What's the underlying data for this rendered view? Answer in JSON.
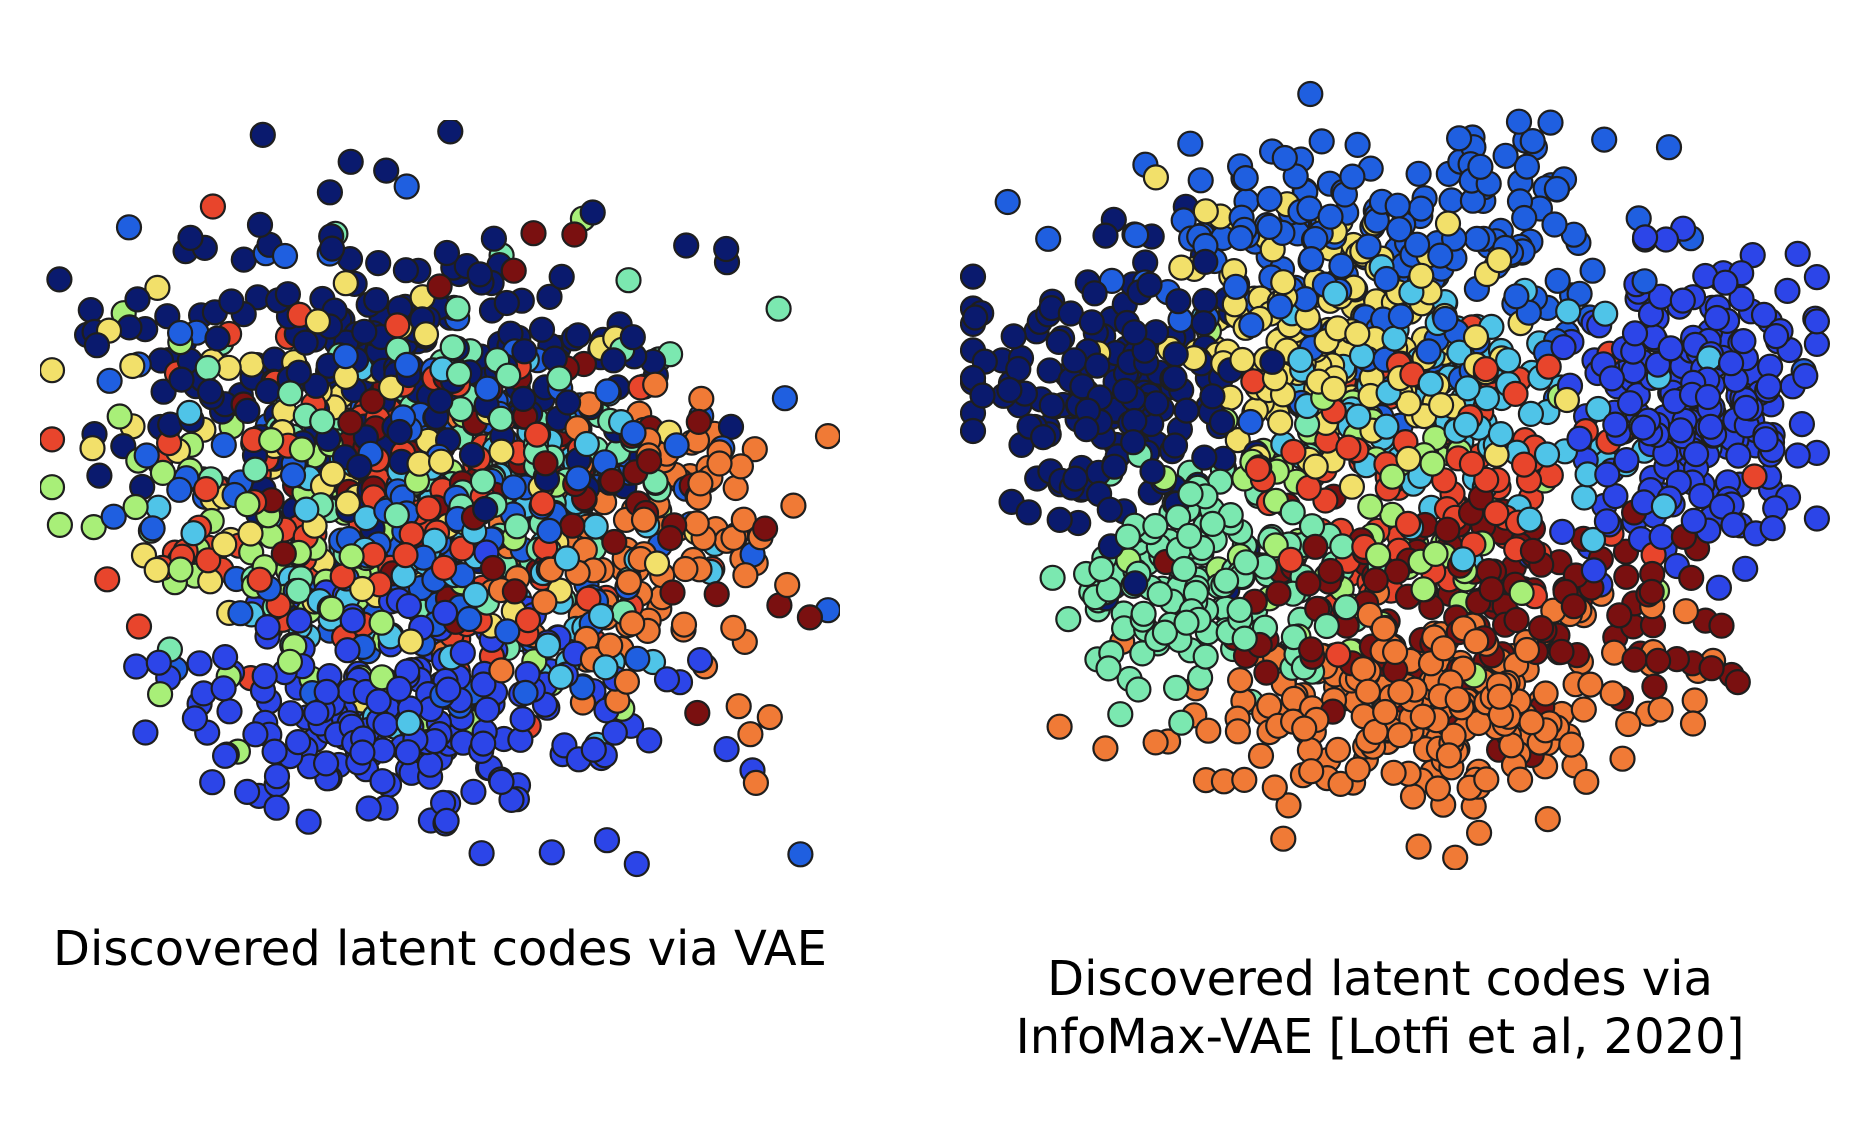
{
  "captions": {
    "vae": "Discovered latent codes via VAE",
    "infomax_line1": "Discovered latent codes via",
    "infomax_line2": "InfoMax-VAE [Lotfi et al, 2020]"
  },
  "chart_data": [
    {
      "type": "scatter",
      "title": "",
      "xlabel": "",
      "ylabel": "",
      "axes_visible": false,
      "grid": false,
      "colors": [
        "#0a1a6e",
        "#1f5fe0",
        "#2c45e8",
        "#4fc4e8",
        "#7be8b0",
        "#a8ef78",
        "#f2e06a",
        "#e8452c",
        "#f07a36",
        "#7a1010"
      ],
      "clusters": [
        {
          "cx": 0.44,
          "cy": 0.32,
          "sx": 0.16,
          "sy": 0.1,
          "n": 260,
          "color": "#0a1a6e"
        },
        {
          "cx": 0.47,
          "cy": 0.52,
          "sx": 0.18,
          "sy": 0.14,
          "n": 170,
          "color": "#1f5fe0"
        },
        {
          "cx": 0.46,
          "cy": 0.78,
          "sx": 0.14,
          "sy": 0.07,
          "n": 220,
          "color": "#2c45e8"
        },
        {
          "cx": 0.55,
          "cy": 0.55,
          "sx": 0.15,
          "sy": 0.12,
          "n": 110,
          "color": "#4fc4e8"
        },
        {
          "cx": 0.5,
          "cy": 0.45,
          "sx": 0.16,
          "sy": 0.13,
          "n": 110,
          "color": "#7be8b0"
        },
        {
          "cx": 0.4,
          "cy": 0.56,
          "sx": 0.15,
          "sy": 0.12,
          "n": 100,
          "color": "#a8ef78"
        },
        {
          "cx": 0.42,
          "cy": 0.47,
          "sx": 0.18,
          "sy": 0.15,
          "n": 90,
          "color": "#f2e06a"
        },
        {
          "cx": 0.42,
          "cy": 0.52,
          "sx": 0.18,
          "sy": 0.14,
          "n": 120,
          "color": "#e8452c"
        },
        {
          "cx": 0.76,
          "cy": 0.55,
          "sx": 0.1,
          "sy": 0.11,
          "n": 120,
          "color": "#f07a36"
        },
        {
          "cx": 0.58,
          "cy": 0.48,
          "sx": 0.14,
          "sy": 0.12,
          "n": 90,
          "color": "#7a1010"
        }
      ]
    },
    {
      "type": "scatter",
      "title": "",
      "xlabel": "",
      "ylabel": "",
      "axes_visible": false,
      "grid": false,
      "clusters": [
        {
          "cx": 0.18,
          "cy": 0.42,
          "sx": 0.08,
          "sy": 0.09,
          "n": 200,
          "color": "#0a1a6e"
        },
        {
          "cx": 0.5,
          "cy": 0.25,
          "sx": 0.14,
          "sy": 0.09,
          "n": 210,
          "color": "#1f5fe0"
        },
        {
          "cx": 0.85,
          "cy": 0.44,
          "sx": 0.07,
          "sy": 0.09,
          "n": 230,
          "color": "#2c45e8"
        },
        {
          "cx": 0.58,
          "cy": 0.42,
          "sx": 0.12,
          "sy": 0.08,
          "n": 120,
          "color": "#4fc4e8"
        },
        {
          "cx": 0.28,
          "cy": 0.65,
          "sx": 0.08,
          "sy": 0.07,
          "n": 170,
          "color": "#7be8b0"
        },
        {
          "cx": 0.44,
          "cy": 0.57,
          "sx": 0.12,
          "sy": 0.08,
          "n": 70,
          "color": "#a8ef78"
        },
        {
          "cx": 0.43,
          "cy": 0.35,
          "sx": 0.1,
          "sy": 0.08,
          "n": 170,
          "color": "#f2e06a"
        },
        {
          "cx": 0.55,
          "cy": 0.52,
          "sx": 0.14,
          "sy": 0.08,
          "n": 100,
          "color": "#e8452c"
        },
        {
          "cx": 0.55,
          "cy": 0.8,
          "sx": 0.13,
          "sy": 0.06,
          "n": 260,
          "color": "#f07a36"
        },
        {
          "cx": 0.58,
          "cy": 0.68,
          "sx": 0.14,
          "sy": 0.07,
          "n": 150,
          "color": "#7a1010"
        }
      ]
    }
  ]
}
